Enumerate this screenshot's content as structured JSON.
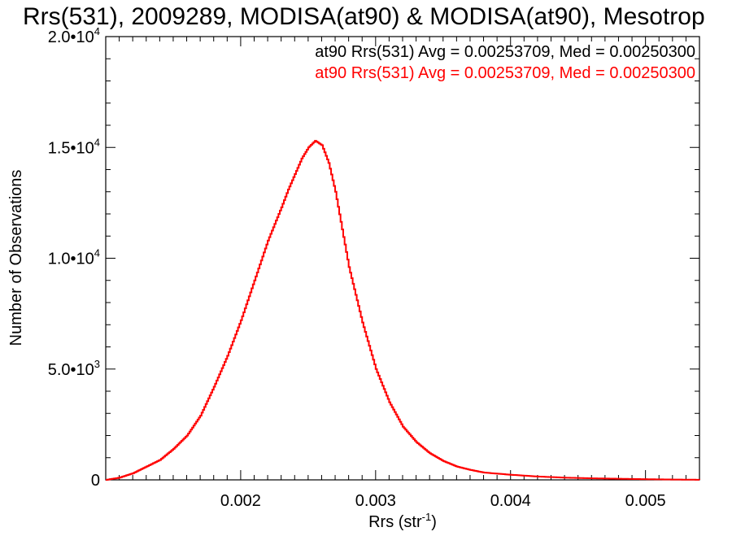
{
  "chart_data": {
    "type": "line",
    "title": "Rrs(531), 2009289, MODISA(at90) & MODISA(at90), Mesotrop",
    "xlabel": "Rrs (str",
    "xlabel_sup": "-1",
    "xlabel_close": ")",
    "ylabel": "Number of Observations",
    "xlim": [
      0.001,
      0.0054
    ],
    "ylim": [
      0,
      20000
    ],
    "x_ticks": [
      {
        "value": 0.002,
        "label": "0.002"
      },
      {
        "value": 0.003,
        "label": "0.003"
      },
      {
        "value": 0.004,
        "label": "0.004"
      },
      {
        "value": 0.005,
        "label": "0.005"
      }
    ],
    "y_ticks": [
      {
        "value": 0,
        "label": "0",
        "sup": ""
      },
      {
        "value": 5000,
        "label": "5.0•10",
        "sup": "3"
      },
      {
        "value": 10000,
        "label": "1.0•10",
        "sup": "4"
      },
      {
        "value": 15000,
        "label": "1.5•10",
        "sup": "4"
      },
      {
        "value": 20000,
        "label": "2.0•10",
        "sup": "4"
      }
    ],
    "annotations": [
      {
        "text": "at90 Rrs(531) Avg = 0.00253709, Med = 0.00250300",
        "color": "#000000"
      },
      {
        "text": "at90 Rrs(531) Avg = 0.00253709, Med = 0.00250300",
        "color": "#ff0000"
      }
    ],
    "series": [
      {
        "color": "#ff0000",
        "style": "histogram-step",
        "x": [
          0.001,
          0.0011,
          0.0012,
          0.0013,
          0.0014,
          0.0015,
          0.0016,
          0.0017,
          0.0018,
          0.0019,
          0.002,
          0.0021,
          0.0022,
          0.0023,
          0.00235,
          0.0024,
          0.00245,
          0.0025,
          0.00255,
          0.0026,
          0.00265,
          0.0027,
          0.00275,
          0.0028,
          0.0029,
          0.003,
          0.0031,
          0.0032,
          0.0033,
          0.0034,
          0.0035,
          0.0036,
          0.0037,
          0.0038,
          0.004,
          0.0042,
          0.0044,
          0.0046,
          0.0048,
          0.005,
          0.0052,
          0.0054
        ],
        "y": [
          0,
          100,
          300,
          600,
          900,
          1400,
          2000,
          2900,
          4200,
          5600,
          7200,
          9000,
          10800,
          12300,
          13100,
          13800,
          14500,
          15000,
          15300,
          15100,
          14300,
          13000,
          11300,
          9600,
          7100,
          5000,
          3500,
          2400,
          1700,
          1200,
          850,
          600,
          450,
          330,
          230,
          150,
          100,
          70,
          50,
          30,
          15,
          5
        ]
      }
    ]
  }
}
